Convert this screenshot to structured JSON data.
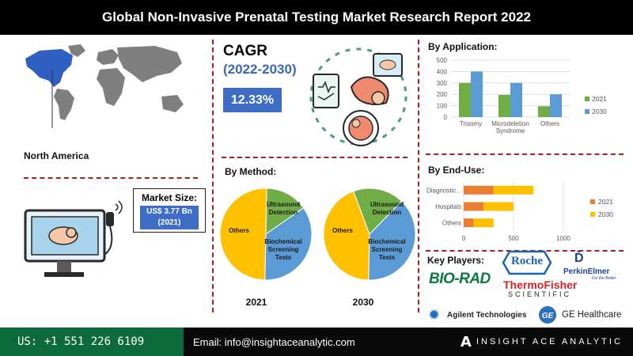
{
  "title": "Global Non-Invasive Prenatal Testing Market Research Report 2022",
  "region": {
    "label": "North America"
  },
  "cagr": {
    "title": "CAGR",
    "period": "(2022-2030)",
    "value": "12.33%"
  },
  "market_size": {
    "label": "Market Size:",
    "value_line1": "US$ 3.77 Bn",
    "value_line2": "(2021)"
  },
  "sections": {
    "application": "By Application:",
    "method": "By Method:",
    "enduse": "By  End-Use:",
    "players": "Key Players:"
  },
  "players": {
    "roche": "Roche",
    "biorad": "BIO-RAD",
    "perkin": "PerkinElmer",
    "perkin_tag": "For the Better",
    "thermo": "ThermoFisher",
    "thermo_sub": "SCIENTIFIC",
    "agilent": "Agilent Technologies",
    "ge": "GE Healthcare"
  },
  "footer": {
    "phone": "US: +1 551 226 6109",
    "email": "Email: info@insightaceanalytic.com",
    "brand": "INSIGHT ACE ANALYTIC"
  },
  "colors": {
    "green": "#70ad47",
    "blue": "#5b9bd5",
    "orange": "#ed7d31",
    "yellow": "#ffc000",
    "accent_blue": "#3d6dc4",
    "dash_red": "#a61f1f",
    "footer_green": "#0d6b3b"
  },
  "chart_data": [
    {
      "type": "bar",
      "title": "By Application:",
      "categories": [
        "Trisomy",
        "Microdeletion Syndrome",
        "Others"
      ],
      "category_lines": [
        [
          "Trisomy"
        ],
        [
          "Microdeletion",
          "Syndrome"
        ],
        [
          "Others"
        ]
      ],
      "series": [
        {
          "name": "2021",
          "values": [
            300,
            195,
            95
          ],
          "color": "#70ad47"
        },
        {
          "name": "2030",
          "values": [
            400,
            300,
            200
          ],
          "color": "#5b9bd5"
        }
      ],
      "ylim": [
        0,
        500
      ],
      "yticks": [
        "0",
        "100",
        "200",
        "300",
        "400",
        "500"
      ],
      "grid": true,
      "legend": "right"
    },
    {
      "type": "bar",
      "orientation": "horizontal",
      "stacked": true,
      "title": "By  End-Use:",
      "categories": [
        "Diagnostic...",
        "Hospitals",
        "Others"
      ],
      "series": [
        {
          "name": "2021",
          "values": [
            300,
            200,
            100
          ],
          "color": "#ed7d31"
        },
        {
          "name": "2030",
          "values": [
            400,
            300,
            200
          ],
          "color": "#ffc000"
        }
      ],
      "xlim": [
        0,
        1000
      ],
      "xticks": [
        "0",
        "500",
        "1000"
      ],
      "grid": true,
      "legend": "right"
    },
    {
      "type": "pie",
      "title": "By Method:",
      "label": "2021",
      "slices": [
        {
          "name": "Others",
          "value": 50,
          "color": "#ffc000"
        },
        {
          "name": "Ultrasound Detection",
          "value": 15,
          "color": "#70ad47"
        },
        {
          "name": "Biochemical Screening Tests",
          "value": 35,
          "color": "#5b9bd5"
        }
      ]
    },
    {
      "type": "pie",
      "title": "By Method:",
      "label": "2030",
      "slices": [
        {
          "name": "Others",
          "value": 44,
          "color": "#ffc000"
        },
        {
          "name": "Ultrasound Detection",
          "value": 18,
          "color": "#70ad47"
        },
        {
          "name": "Biochemical Screening Tests",
          "value": 38,
          "color": "#5b9bd5"
        }
      ]
    }
  ]
}
